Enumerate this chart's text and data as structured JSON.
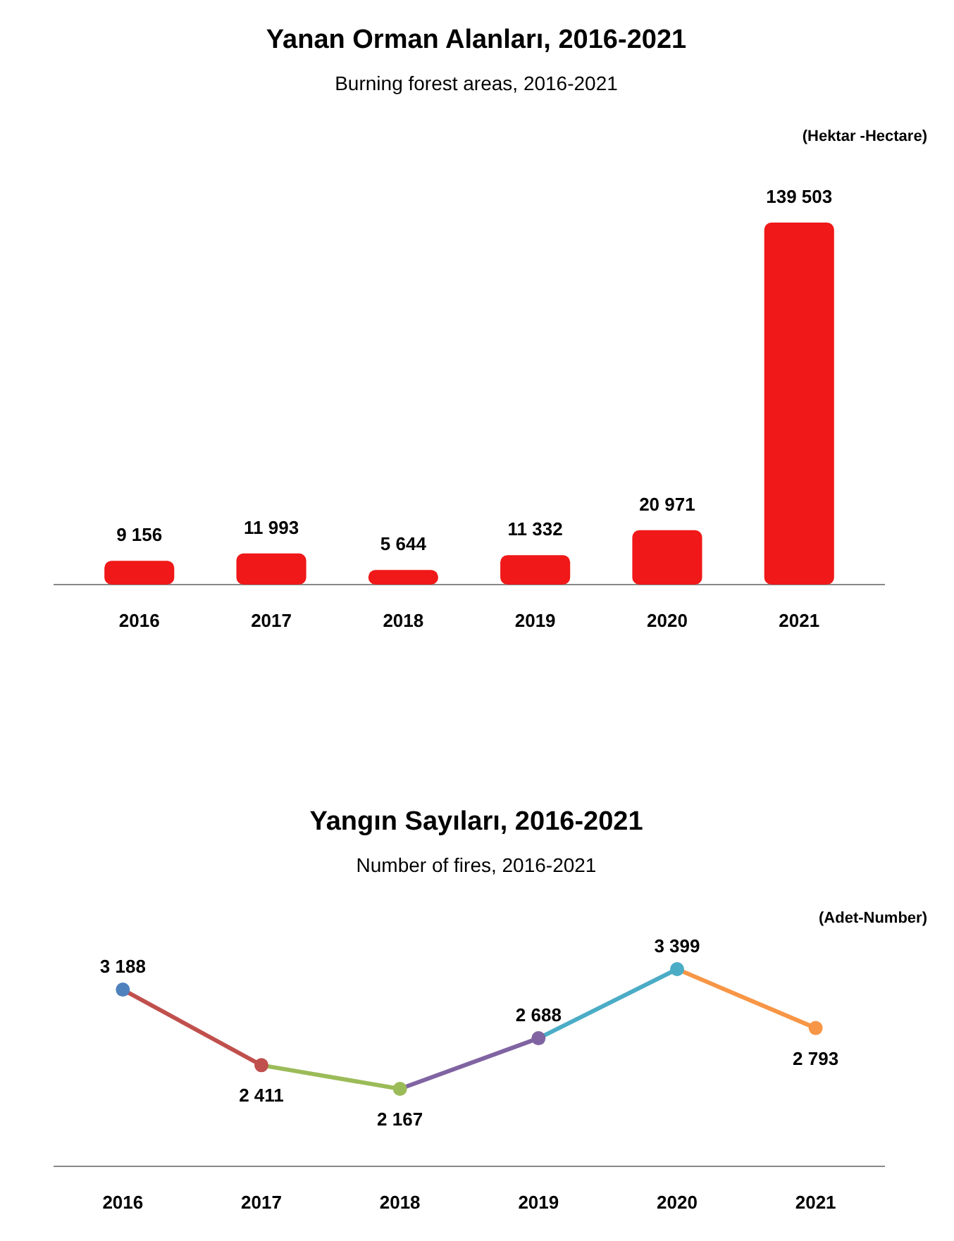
{
  "chart_data": [
    {
      "type": "bar",
      "title": "Yanan Orman Alanları, 2016-2021",
      "subtitle": "Burning forest areas, 2016-2021",
      "annotations": [
        "(Hektar -Hectare)"
      ],
      "categories": [
        "2016",
        "2017",
        "2018",
        "2019",
        "2020",
        "2021"
      ],
      "values": [
        9156,
        11993,
        5644,
        11332,
        20971,
        139503
      ],
      "value_labels": [
        "9 156",
        "11 993",
        "5 644",
        "11 332",
        "20 971",
        "139 503"
      ],
      "color": "#f01818"
    },
    {
      "type": "line",
      "title": "Yangın Sayıları, 2016-2021",
      "subtitle": "Number of fires, 2016-2021",
      "annotations": [
        "(Adet-Number)"
      ],
      "categories": [
        "2016",
        "2017",
        "2018",
        "2019",
        "2020",
        "2021"
      ],
      "values": [
        3188,
        2411,
        2167,
        2688,
        3399,
        2793
      ],
      "value_labels": [
        "3 188",
        "2 411",
        "2 167",
        "2 688",
        "3 399",
        "2 793"
      ],
      "colors": [
        "#4f81bd",
        "#c0504d",
        "#9bbb59",
        "#8064a2",
        "#4bacc6",
        "#f79646"
      ],
      "marker": "circle"
    }
  ]
}
